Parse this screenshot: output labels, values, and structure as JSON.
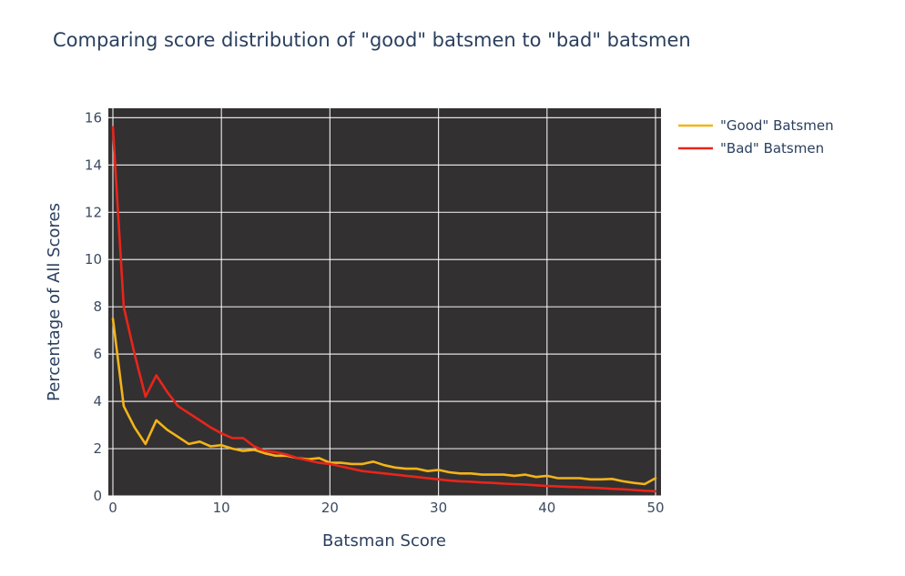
{
  "chart_data": {
    "type": "line",
    "title": "Comparing score distribution of \"good\" batsmen to \"bad\" batsmen",
    "xlabel": "Batsman Score",
    "ylabel": "Percentage of All Scores",
    "xlim": [
      0,
      50
    ],
    "ylim": [
      0,
      16.4
    ],
    "xticks": [
      0,
      10,
      20,
      30,
      40,
      50
    ],
    "yticks": [
      0,
      2,
      4,
      6,
      8,
      10,
      12,
      14,
      16
    ],
    "grid": true,
    "legend_position": "top-right-outside",
    "plot_background": "#333031",
    "x": [
      0,
      1,
      2,
      3,
      4,
      5,
      6,
      7,
      8,
      9,
      10,
      11,
      12,
      13,
      14,
      15,
      16,
      17,
      18,
      19,
      20,
      21,
      22,
      23,
      24,
      25,
      26,
      27,
      28,
      29,
      30,
      31,
      32,
      33,
      34,
      35,
      36,
      37,
      38,
      39,
      40,
      41,
      42,
      43,
      44,
      45,
      46,
      47,
      48,
      49,
      50
    ],
    "series": [
      {
        "name": "\"Good\" Batsmen",
        "color": "#f2b418",
        "values": [
          7.5,
          3.8,
          2.9,
          2.2,
          3.2,
          2.8,
          2.5,
          2.2,
          2.3,
          2.1,
          2.15,
          2.0,
          1.9,
          1.95,
          1.8,
          1.7,
          1.7,
          1.6,
          1.55,
          1.6,
          1.4,
          1.4,
          1.35,
          1.35,
          1.45,
          1.3,
          1.2,
          1.15,
          1.15,
          1.05,
          1.1,
          1.0,
          0.95,
          0.95,
          0.9,
          0.9,
          0.9,
          0.85,
          0.9,
          0.8,
          0.85,
          0.75,
          0.75,
          0.75,
          0.7,
          0.7,
          0.72,
          0.62,
          0.55,
          0.5,
          0.75
        ]
      },
      {
        "name": "\"Bad\" Batsmen",
        "color": "#e8251b",
        "values": [
          15.6,
          8.0,
          6.0,
          4.2,
          5.1,
          4.4,
          3.8,
          3.5,
          3.2,
          2.9,
          2.65,
          2.45,
          2.45,
          2.1,
          1.9,
          1.85,
          1.75,
          1.6,
          1.5,
          1.4,
          1.35,
          1.25,
          1.15,
          1.05,
          1.0,
          0.95,
          0.9,
          0.85,
          0.8,
          0.75,
          0.7,
          0.65,
          0.62,
          0.6,
          0.57,
          0.55,
          0.52,
          0.5,
          0.48,
          0.45,
          0.42,
          0.4,
          0.38,
          0.37,
          0.35,
          0.33,
          0.3,
          0.28,
          0.25,
          0.22,
          0.2
        ]
      }
    ]
  }
}
